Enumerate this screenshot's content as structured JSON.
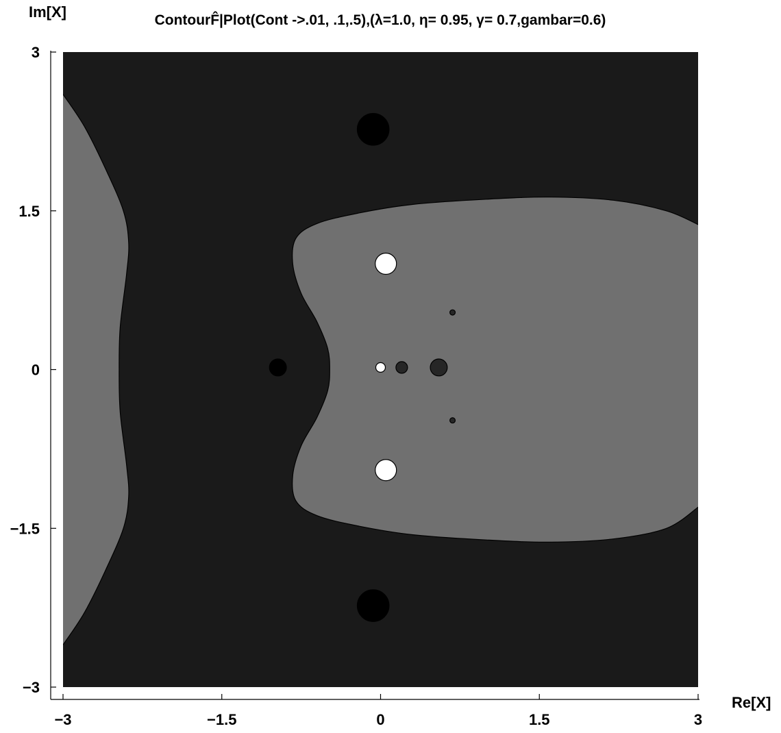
{
  "chart_data": {
    "type": "contour",
    "title": "ContourF̂|Plot(Cont ->.01, .1,.5),(λ=1.0, η= 0.95, γ= 0.7,gambar=0.6)",
    "xlabel": "Re[X]",
    "ylabel": "Im[X]",
    "xlim": [
      -3,
      3
    ],
    "ylim": [
      -3,
      3
    ],
    "xticks": [
      -3,
      -1.5,
      0,
      1.5,
      3
    ],
    "yticks": [
      -3,
      -1.5,
      0,
      1.5,
      3
    ],
    "xtick_labels": [
      "−3",
      "−1.5",
      "0",
      "1.5",
      "3"
    ],
    "ytick_labels": [
      "−3",
      "−1.5",
      "0",
      "1.5",
      "3"
    ],
    "contour_levels": [
      0.01,
      0.1,
      0.5
    ],
    "grid": false,
    "colors": {
      "background": "#1a1a1a",
      "level_mid": "#707070",
      "level_low": "#000000",
      "level_high": "#ffffff",
      "inner_dark": "#262626"
    },
    "regions": [
      {
        "id": "left-band",
        "fill": "level_mid",
        "points": [
          [
            -3,
            2.6
          ],
          [
            -2.8,
            2.3
          ],
          [
            -2.6,
            1.9
          ],
          [
            -2.43,
            1.5
          ],
          [
            -2.38,
            1.2
          ],
          [
            -2.4,
            0.9
          ],
          [
            -2.46,
            0.4
          ],
          [
            -2.47,
            0
          ],
          [
            -2.46,
            -0.4
          ],
          [
            -2.4,
            -0.9
          ],
          [
            -2.38,
            -1.2
          ],
          [
            -2.43,
            -1.5
          ],
          [
            -2.6,
            -1.9
          ],
          [
            -2.8,
            -2.3
          ],
          [
            -3,
            -2.6
          ]
        ]
      },
      {
        "id": "right-lobe",
        "fill": "level_mid",
        "points": [
          [
            3,
            1.37
          ],
          [
            2.7,
            1.5
          ],
          [
            2.2,
            1.6
          ],
          [
            1.6,
            1.63
          ],
          [
            1.0,
            1.61
          ],
          [
            0.3,
            1.56
          ],
          [
            -0.2,
            1.48
          ],
          [
            -0.6,
            1.38
          ],
          [
            -0.8,
            1.24
          ],
          [
            -0.83,
            1.0
          ],
          [
            -0.75,
            0.72
          ],
          [
            -0.6,
            0.45
          ],
          [
            -0.5,
            0.2
          ],
          [
            -0.48,
            0
          ],
          [
            -0.5,
            -0.2
          ],
          [
            -0.6,
            -0.45
          ],
          [
            -0.75,
            -0.72
          ],
          [
            -0.83,
            -1.0
          ],
          [
            -0.8,
            -1.24
          ],
          [
            -0.6,
            -1.38
          ],
          [
            -0.2,
            -1.48
          ],
          [
            0.3,
            -1.56
          ],
          [
            1.0,
            -1.61
          ],
          [
            1.6,
            -1.63
          ],
          [
            2.2,
            -1.6
          ],
          [
            2.7,
            -1.5
          ],
          [
            3,
            -1.3
          ]
        ]
      }
    ],
    "spots": [
      {
        "x": -0.07,
        "y": 2.27,
        "r": 0.15,
        "fill": "level_low"
      },
      {
        "x": -0.07,
        "y": -2.23,
        "r": 0.15,
        "fill": "level_low"
      },
      {
        "x": -0.97,
        "y": 0.02,
        "r": 0.08,
        "fill": "level_low"
      },
      {
        "x": 0.05,
        "y": 1.0,
        "r": 0.1,
        "fill": "level_high"
      },
      {
        "x": 0.05,
        "y": -0.95,
        "r": 0.1,
        "fill": "level_high"
      },
      {
        "x": 0.0,
        "y": 0.02,
        "r": 0.045,
        "fill": "level_high"
      },
      {
        "x": 0.2,
        "y": 0.02,
        "r": 0.055,
        "fill": "inner_dark"
      },
      {
        "x": 0.55,
        "y": 0.02,
        "r": 0.08,
        "fill": "inner_dark"
      },
      {
        "x": 0.68,
        "y": 0.54,
        "r": 0.025,
        "fill": "inner_dark"
      },
      {
        "x": 0.68,
        "y": -0.48,
        "r": 0.025,
        "fill": "inner_dark"
      }
    ]
  }
}
